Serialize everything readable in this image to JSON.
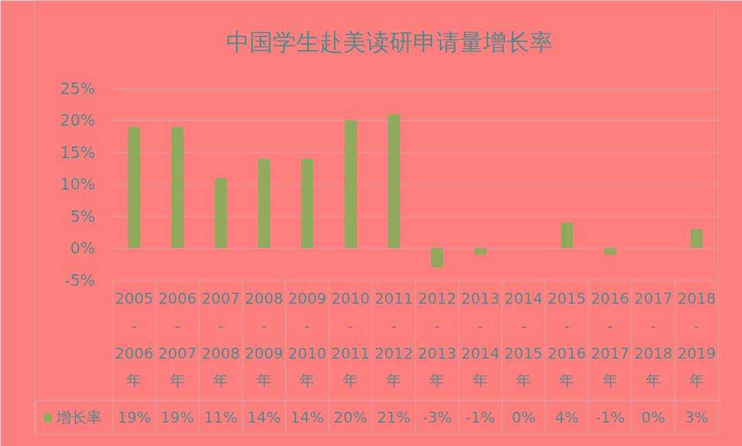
{
  "chart_data": {
    "type": "bar",
    "title": "中国学生赴美读研申请量增长率",
    "categories": [
      "2005-2006年",
      "2006-2007年",
      "2007-2008年",
      "2008-2009年",
      "2009-2010年",
      "2010-2011年",
      "2011-2012年",
      "2012-2013年",
      "2013-2014年",
      "2014-2015年",
      "2015-2016年",
      "2016-2017年",
      "2017-2018年",
      "2018-2019年"
    ],
    "series": [
      {
        "name": "增长率",
        "color": "#8faa5c",
        "values": [
          19,
          19,
          11,
          14,
          14,
          20,
          21,
          -3,
          -1,
          0,
          4,
          -1,
          0,
          3
        ],
        "value_labels": [
          "19%",
          "19%",
          "11%",
          "14%",
          "14%",
          "20%",
          "21%",
          "-3%",
          "-1%",
          "0%",
          "4%",
          "-1%",
          "0%",
          "3%"
        ]
      }
    ],
    "ylim": [
      -5,
      25
    ],
    "yticks": [
      {
        "value": -5,
        "label": "-5%"
      },
      {
        "value": 0,
        "label": "0%"
      },
      {
        "value": 5,
        "label": "5%"
      },
      {
        "value": 10,
        "label": "10%"
      },
      {
        "value": 15,
        "label": "15%"
      },
      {
        "value": 20,
        "label": "20%"
      },
      {
        "value": 25,
        "label": "25%"
      }
    ],
    "grid": "y",
    "legend": "bottom"
  }
}
